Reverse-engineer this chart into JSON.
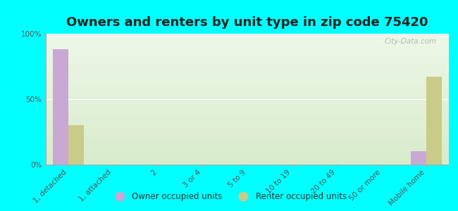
{
  "title": "Owners and renters by unit type in zip code 75420",
  "categories": [
    "1, detached",
    "1, attached",
    "2",
    "3 or 4",
    "5 to 9",
    "10 to 19",
    "20 to 49",
    "50 or more",
    "Mobile home"
  ],
  "owner_values": [
    88,
    0,
    0,
    0,
    0,
    0,
    0,
    0,
    10
  ],
  "renter_values": [
    30,
    0,
    0,
    0,
    0,
    0,
    0,
    0,
    67
  ],
  "owner_color": "#c9a8d4",
  "renter_color": "#c8cc88",
  "background_color": "#00ffff",
  "ylim": [
    0,
    100
  ],
  "yticks": [
    0,
    50,
    100
  ],
  "ytick_labels": [
    "0%",
    "50%",
    "100%"
  ],
  "bar_width": 0.35,
  "legend_owner": "Owner occupied units",
  "legend_renter": "Renter occupied units",
  "watermark": "City-Data.com",
  "title_fontsize": 13,
  "tick_fontsize": 7.5
}
